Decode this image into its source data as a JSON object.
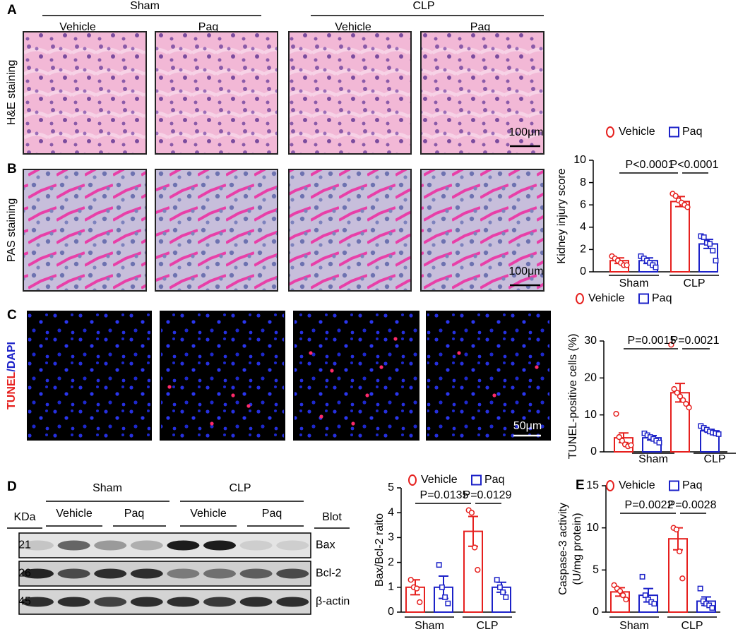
{
  "panel_labels": [
    "A",
    "B",
    "C",
    "D",
    "E"
  ],
  "images": {
    "groups": [
      "Sham",
      "CLP"
    ],
    "subgroups": [
      "Vehicle",
      "Paq",
      "Vehicle",
      "Paq"
    ],
    "rows": [
      {
        "label_parts": [
          "H&E staining"
        ],
        "scale_bar": "100μm"
      },
      {
        "label_parts": [
          "PAS staining"
        ],
        "scale_bar": "100μm"
      },
      {
        "label_parts": [
          "TUNEL",
          "/DAPI"
        ],
        "scale_bar": "50μm"
      }
    ]
  },
  "blot": {
    "kda_header": "KDa",
    "blot_header": "Blot",
    "groups": [
      "Sham",
      "CLP"
    ],
    "subgroups": [
      "Vehicle",
      "Paq",
      "Vehicle",
      "Paq"
    ],
    "rows": [
      {
        "kda": "21",
        "name": "Bax"
      },
      {
        "kda": "26",
        "name": "Bcl-2"
      },
      {
        "kda": "45",
        "name": "β-actin"
      }
    ]
  },
  "chart_data": [
    {
      "type": "bar",
      "ylabel": "Kidney injury score",
      "categories": [
        "Sham",
        "CLP"
      ],
      "ylim": [
        0,
        10
      ],
      "yticks": [
        0,
        2,
        4,
        6,
        8,
        10
      ],
      "annotations": [
        "P<0.0001",
        "P<0.0001"
      ],
      "series": [
        {
          "name": "Vehicle",
          "color": "#e6201e",
          "marker": "circle",
          "values": [
            1.0,
            6.3
          ],
          "errors": [
            0.25,
            0.45
          ],
          "points": [
            [
              1.4,
              1.2,
              1.0,
              0.8,
              0.6,
              0.6
            ],
            [
              7.0,
              6.8,
              6.4,
              6.2,
              6.0,
              5.8
            ]
          ]
        },
        {
          "name": "Paq",
          "color": "#1c22c8",
          "marker": "square",
          "values": [
            1.0,
            2.5
          ],
          "errors": [
            0.25,
            0.4
          ],
          "points": [
            [
              1.4,
              1.2,
              1.0,
              0.8,
              0.6,
              0.4
            ],
            [
              3.2,
              3.1,
              2.6,
              2.5,
              1.9,
              1.0
            ]
          ]
        }
      ]
    },
    {
      "type": "bar",
      "ylabel": "TUNEL-positive cells (%)",
      "categories": [
        "Sham",
        "CLP"
      ],
      "ylim": [
        0,
        30
      ],
      "yticks": [
        0,
        10,
        20,
        30
      ],
      "annotations": [
        "P=0.0015",
        "P=0.0021"
      ],
      "series": [
        {
          "name": "Vehicle",
          "color": "#e6201e",
          "marker": "circle",
          "values": [
            3.8,
            16
          ],
          "errors": [
            1.3,
            2.5
          ],
          "points": [
            [
              10.3,
              4,
              3,
              2,
              1.5,
              1.8
            ],
            [
              29,
              17,
              16,
              15,
              14,
              13,
              12
            ]
          ]
        },
        {
          "name": "Paq",
          "color": "#1c22c8",
          "marker": "square",
          "values": [
            3.8,
            5.7
          ],
          "errors": [
            0.6,
            0.4
          ],
          "points": [
            [
              5,
              4.5,
              4,
              3.5,
              3,
              2.5
            ],
            [
              7,
              6.5,
              6,
              5.5,
              5.2,
              5,
              4.8
            ]
          ]
        }
      ]
    },
    {
      "type": "bar",
      "ylabel": "Bax/Bcl-2 raito",
      "categories": [
        "Sham",
        "CLP"
      ],
      "ylim": [
        0,
        5
      ],
      "yticks": [
        0,
        1,
        2,
        3,
        4,
        5
      ],
      "annotations": [
        "P=0.0135",
        "P=0.0129"
      ],
      "series": [
        {
          "name": "Vehicle",
          "color": "#e6201e",
          "marker": "circle",
          "values": [
            1.0,
            3.25
          ],
          "errors": [
            0.3,
            0.6
          ],
          "points": [
            [
              1.3,
              1.0,
              0.95,
              0.4
            ],
            [
              4.1,
              4.0,
              2.6,
              1.7
            ]
          ]
        },
        {
          "name": "Paq",
          "color": "#1c22c8",
          "marker": "square",
          "values": [
            1.0,
            1.0
          ],
          "errors": [
            0.45,
            0.2
          ],
          "points": [
            [
              1.9,
              1.0,
              0.6,
              0.35
            ],
            [
              1.3,
              1.0,
              0.8,
              0.6
            ]
          ]
        }
      ]
    },
    {
      "type": "bar",
      "ylabel": [
        "Caspase-3 activity",
        "(U/mg protein)"
      ],
      "categories": [
        "Sham",
        "CLP"
      ],
      "ylim": [
        0,
        15
      ],
      "yticks": [
        0,
        5,
        10,
        15
      ],
      "annotations": [
        "P=0.0022",
        "P=0.0028"
      ],
      "series": [
        {
          "name": "Vehicle",
          "color": "#e6201e",
          "marker": "circle",
          "values": [
            2.4,
            8.7
          ],
          "errors": [
            0.5,
            1.3
          ],
          "points": [
            [
              3.2,
              2.8,
              2.5,
              2.0,
              1.5
            ],
            [
              10,
              9.8,
              7.2,
              4
            ]
          ]
        },
        {
          "name": "Paq",
          "color": "#1c22c8",
          "marker": "square",
          "values": [
            2.0,
            1.3
          ],
          "errors": [
            0.8,
            0.5
          ],
          "points": [
            [
              4.2,
              2,
              1.5,
              1.2,
              1
            ],
            [
              2.8,
              1.3,
              1,
              0.8,
              0.5
            ]
          ]
        }
      ]
    }
  ]
}
